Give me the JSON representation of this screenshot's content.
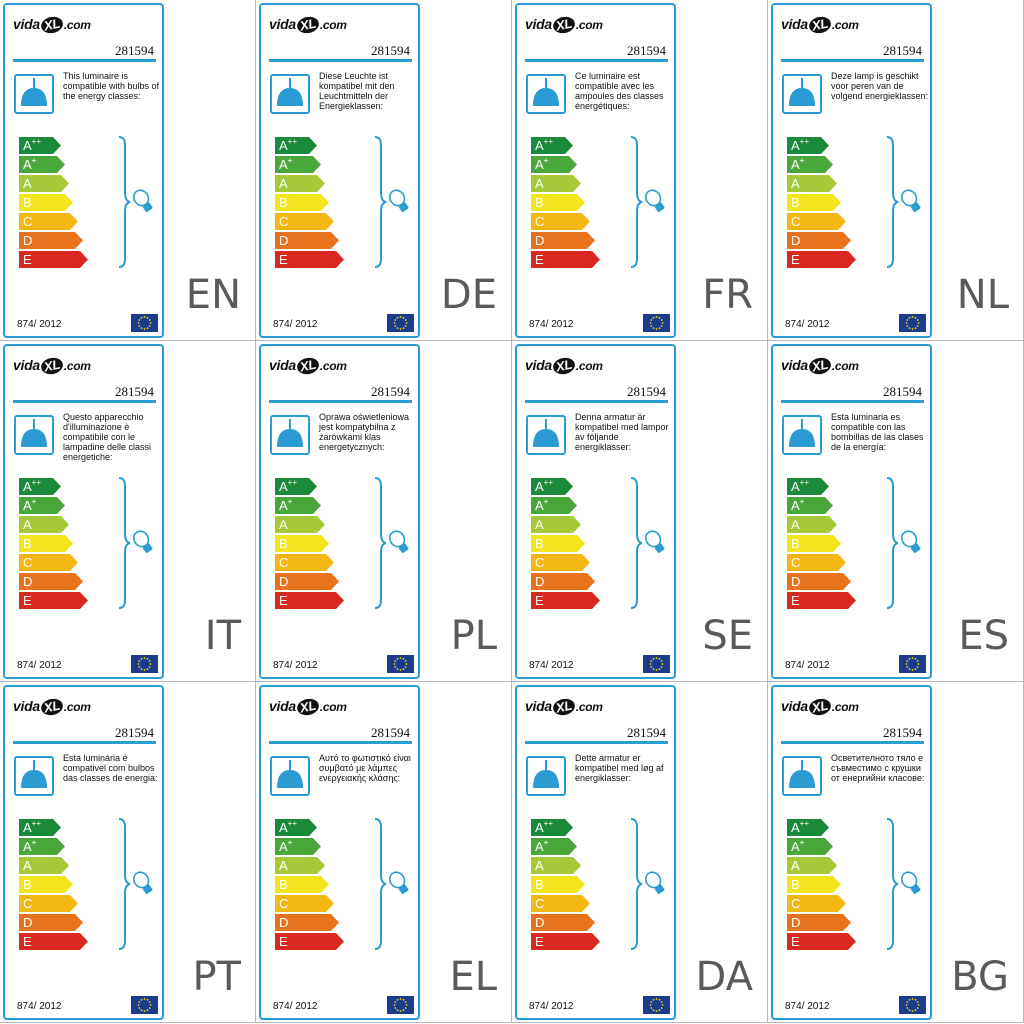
{
  "product_code": "281594",
  "regulation": "874/ 2012",
  "brand": {
    "prefix": "vida",
    "mark": "XL",
    "suffix": ".com"
  },
  "colors": {
    "accent": "#2b9bd3",
    "lamp": "#2b9bd3",
    "eu_flag": "#1b3c8c",
    "eu_stars": "#ffd200",
    "classes": {
      "A++": "#1a8a3a",
      "A+": "#4aa83a",
      "A": "#a6c93a",
      "B": "#f3e51c",
      "C": "#f3b714",
      "D": "#e8731f",
      "E": "#d9281f"
    }
  },
  "energy_classes": [
    {
      "letter": "A",
      "sup": "++",
      "key": "A++"
    },
    {
      "letter": "A",
      "sup": "+",
      "key": "A+"
    },
    {
      "letter": "A",
      "sup": "",
      "key": "A"
    },
    {
      "letter": "B",
      "sup": "",
      "key": "B"
    },
    {
      "letter": "C",
      "sup": "",
      "key": "C"
    },
    {
      "letter": "D",
      "sup": "",
      "key": "D"
    },
    {
      "letter": "E",
      "sup": "",
      "key": "E"
    }
  ],
  "icons": {
    "lamp": "pendant-lamp-icon",
    "bulb": "light-bulb-icon",
    "flag": "eu-flag-icon",
    "brace": "bracket"
  },
  "panels": [
    {
      "code": "EN",
      "text": "This luminaire is compatible with bulbs of the energy classes:"
    },
    {
      "code": "DE",
      "text": "Diese Leuchte ist kompatibel mit den Leuchtmitteln der Energieklassen:"
    },
    {
      "code": "FR",
      "text": "Ce luminaire est compatible avec les ampoules des classes énergétiques:"
    },
    {
      "code": "NL",
      "text": "Deze lamp is geschikt voor peren van de volgend energieklassen:"
    },
    {
      "code": "IT",
      "text": "Questo apparecchio d'illuminazione è compatibile con le lampadine delle classi energetiche:"
    },
    {
      "code": "PL",
      "text": "Oprawa oświetleniowa jest kompatybilna z żarówkami klas energetycznych:"
    },
    {
      "code": "SE",
      "text": "Denna armatur är kompatibel med lampor av följande energiklasser:"
    },
    {
      "code": "ES",
      "text": "Esta luminaria es compatible con las bombillas de las clases de la energía:"
    },
    {
      "code": "PT",
      "text": "Esta luminária é compativel com bulbos das classes de energia:"
    },
    {
      "code": "EL",
      "text": "Αυτό το φωτιστικό είναι συμβατό με λάμπες ενεργειακής κλάσης:"
    },
    {
      "code": "DA",
      "text": "Dette armatur er kompatibel med løg af energiklasser:"
    },
    {
      "code": "BG",
      "text": "Осветителното тяло е съвместимо с крушки от енергийни класове:"
    }
  ]
}
